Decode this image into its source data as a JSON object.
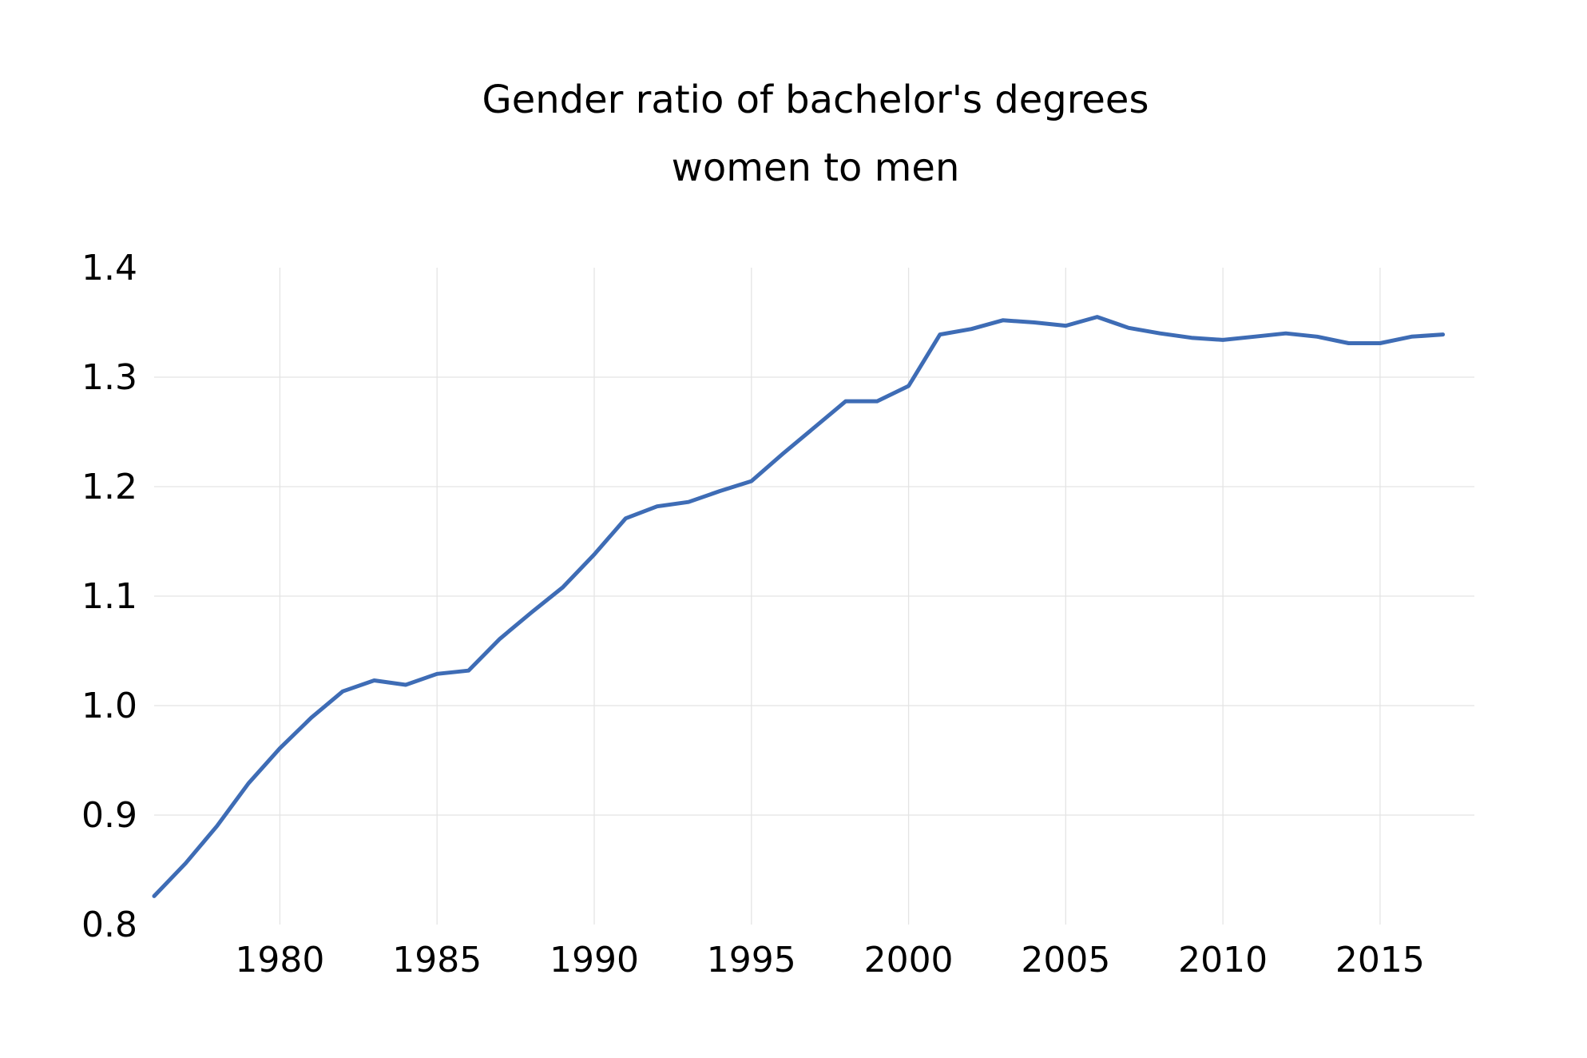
{
  "chart_data": {
    "type": "line",
    "title": "Gender ratio of bachelor's degrees",
    "subtitle": "women to men",
    "xlabel": "",
    "ylabel": "",
    "xlim": [
      1976,
      2018
    ],
    "ylim": [
      0.8,
      1.4
    ],
    "x_ticks": [
      1980,
      1985,
      1990,
      1995,
      2000,
      2005,
      2010,
      2015
    ],
    "y_ticks": [
      "0.8",
      "0.9",
      "1.0",
      "1.1",
      "1.2",
      "1.3",
      "1.4"
    ],
    "grid": true,
    "legend": "none",
    "series_color": "#3e6cb5",
    "grid_color": "#e4e4e4",
    "x": [
      1976,
      1977,
      1978,
      1979,
      1980,
      1981,
      1982,
      1983,
      1984,
      1985,
      1986,
      1987,
      1988,
      1989,
      1990,
      1991,
      1992,
      1993,
      1994,
      1995,
      1996,
      1997,
      1998,
      1999,
      2000,
      2001,
      2002,
      2003,
      2004,
      2005,
      2006,
      2007,
      2008,
      2009,
      2010,
      2011,
      2012,
      2013,
      2014,
      2015,
      2016,
      2017
    ],
    "values": [
      0.826,
      0.856,
      0.89,
      0.929,
      0.961,
      0.989,
      1.013,
      1.023,
      1.019,
      1.029,
      1.032,
      1.061,
      1.085,
      1.108,
      1.138,
      1.171,
      1.182,
      1.186,
      1.196,
      1.205,
      1.23,
      1.254,
      1.278,
      1.278,
      1.292,
      1.339,
      1.344,
      1.352,
      1.35,
      1.347,
      1.355,
      1.345,
      1.34,
      1.336,
      1.334,
      1.337,
      1.34,
      1.337,
      1.331,
      1.331,
      1.337,
      1.339
    ]
  }
}
